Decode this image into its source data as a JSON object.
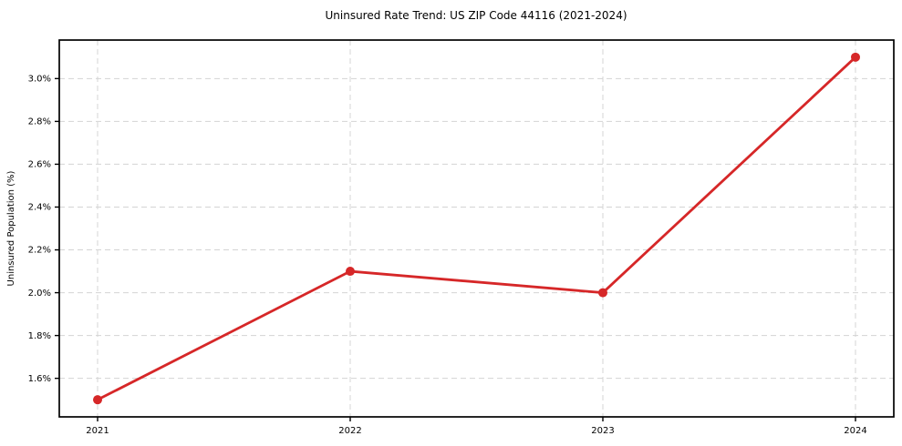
{
  "chart_data": {
    "type": "line",
    "title": "Uninsured Rate Trend: US ZIP Code 44116 (2021-2024)",
    "xlabel": "",
    "ylabel": "Uninsured Population (%)",
    "x": [
      2021,
      2022,
      2023,
      2024
    ],
    "x_ticks": [
      "2021",
      "2022",
      "2023",
      "2024"
    ],
    "series": [
      {
        "name": "Uninsured Population (%)",
        "values": [
          1.5,
          2.1,
          2.0,
          3.1
        ]
      }
    ],
    "y_ticks": [
      {
        "value": 1.6,
        "label": "1.6%"
      },
      {
        "value": 1.8,
        "label": "1.8%"
      },
      {
        "value": 2.0,
        "label": "2.0%"
      },
      {
        "value": 2.2,
        "label": "2.2%"
      },
      {
        "value": 2.4,
        "label": "2.4%"
      },
      {
        "value": 2.6,
        "label": "2.6%"
      },
      {
        "value": 2.8,
        "label": "2.8%"
      },
      {
        "value": 3.0,
        "label": "3.0%"
      }
    ],
    "ylim": [
      1.42,
      3.18
    ],
    "grid": true,
    "legend": false,
    "marker": "circle",
    "line_color": "#d62728",
    "colors": {
      "grid": "#d4d4d4",
      "spine": "#000000",
      "text": "#000000",
      "background": "#ffffff"
    }
  }
}
